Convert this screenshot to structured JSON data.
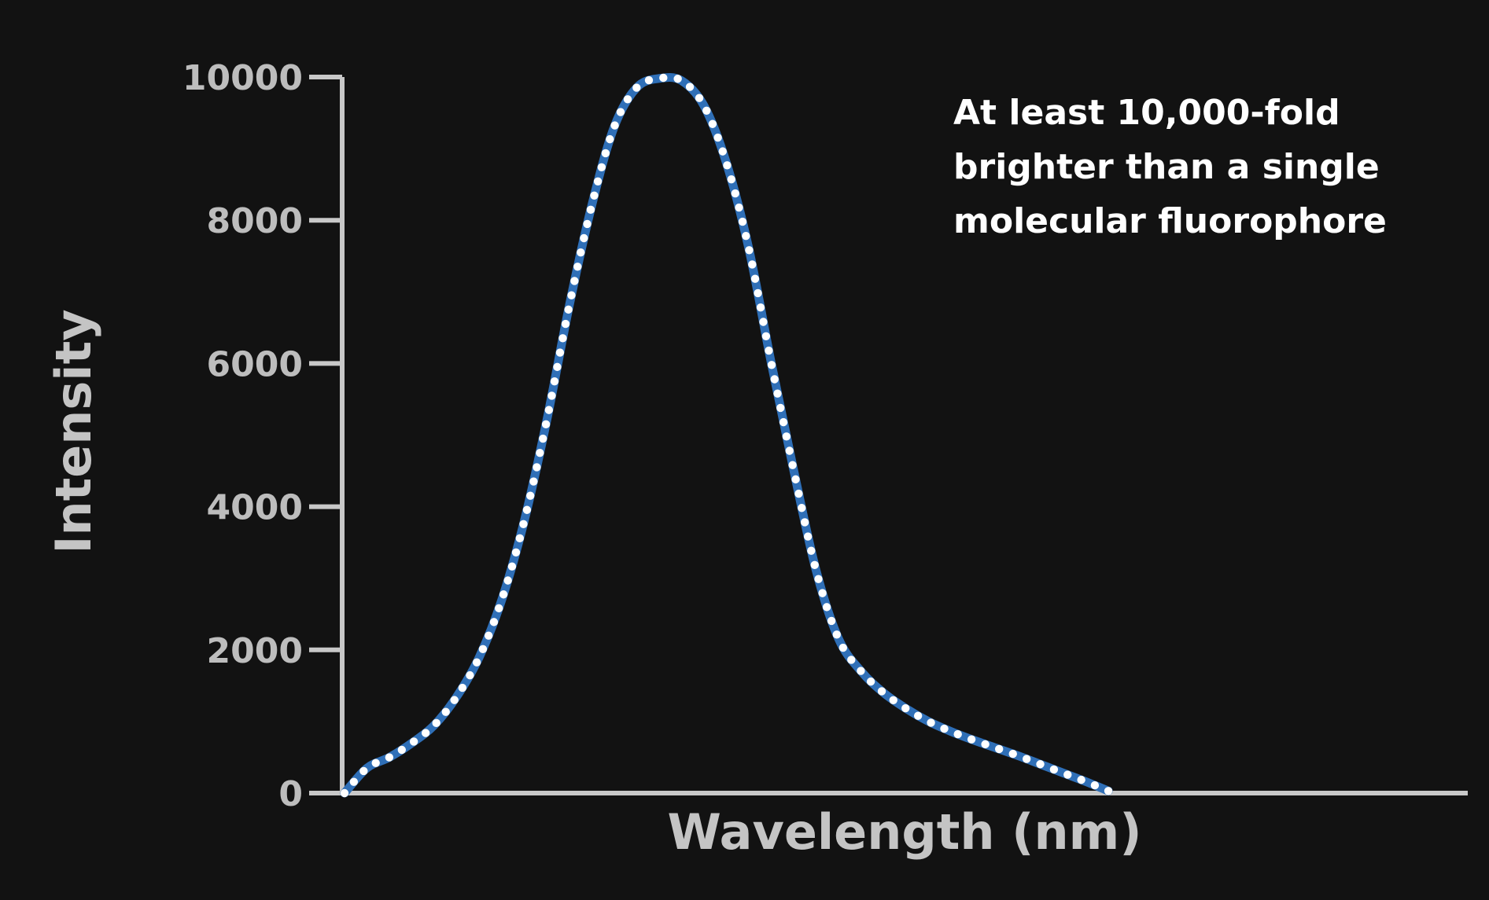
{
  "chart_data": {
    "type": "line",
    "xlabel": "Wavelength (nm)",
    "ylabel": "Intensity",
    "ylim": [
      0,
      10000
    ],
    "yticks": [
      "0",
      "2000",
      "4000",
      "6000",
      "8000",
      "10000"
    ],
    "grid": false,
    "annotation": [
      "At least 10,000-fold",
      "brighter than a single",
      "molecular fluorophore"
    ],
    "colors": {
      "background": "#121212",
      "axis": "#c8c8c8",
      "line": "#2f6fb7",
      "dots": "#ffffff"
    },
    "series": [
      {
        "x": [
          0,
          0.02,
          0.04,
          0.06,
          0.08,
          0.1,
          0.12,
          0.14,
          0.16,
          0.18,
          0.2,
          0.22,
          0.24,
          0.26,
          0.28,
          0.3,
          0.32,
          0.34,
          0.36,
          0.38,
          0.4,
          0.42,
          0.44,
          0.46,
          0.48,
          0.5,
          0.52,
          0.54,
          0.56,
          0.58,
          0.6,
          0.62,
          0.64,
          0.66,
          0.68,
          0.7,
          0.72,
          0.74,
          0.76,
          0.78,
          0.8,
          0.82,
          0.84,
          0.86,
          0.88,
          0.9,
          0.92,
          0.94,
          0.96,
          0.98,
          1.0
        ],
        "y": [
          0,
          350,
          500,
          700,
          950,
          1350,
          1900,
          2700,
          3800,
          5200,
          6800,
          8200,
          9300,
          9850,
          9980,
          9950,
          9600,
          8800,
          7600,
          6000,
          4500,
          3100,
          2150,
          1700,
          1400,
          1180,
          1000,
          860,
          740,
          630,
          520,
          400,
          280,
          160,
          30,
          null,
          null,
          null,
          null,
          null,
          null,
          null,
          null,
          null,
          null,
          null,
          null,
          null,
          null,
          null,
          null
        ]
      }
    ]
  }
}
